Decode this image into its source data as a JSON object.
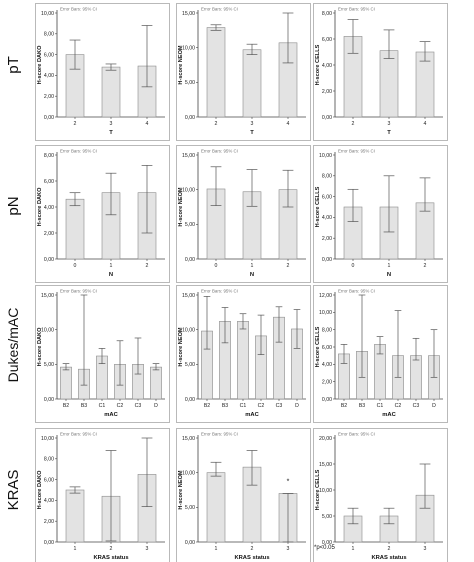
{
  "colors": {
    "bar_fill": "#e3e3e3",
    "bar_stroke": "#8a8a8a",
    "error_bar": "#555555",
    "frame": "#b9b9b9"
  },
  "rows": [
    {
      "label": "pT"
    },
    {
      "label": "pN"
    },
    {
      "label": "Dukes/mAC"
    },
    {
      "label": "KRAS"
    }
  ],
  "footnote": "*p<0.05",
  "chart_data": [
    {
      "type": "bar",
      "row": 0,
      "col": 0,
      "note": "Error Bars: 95% CI",
      "ylabel": "H-score DAKO",
      "xlabel": "T",
      "categories": [
        "2",
        "3",
        "4"
      ],
      "values": [
        6.0,
        4.8,
        4.9
      ],
      "ci_low": [
        4.6,
        4.5,
        2.9
      ],
      "ci_high": [
        7.4,
        5.1,
        8.8
      ],
      "ylim": [
        0,
        10
      ],
      "yticks": [
        "0,00",
        "2,00",
        "4,00",
        "6,00",
        "8,00",
        "10,00"
      ],
      "annotation": ""
    },
    {
      "type": "bar",
      "row": 0,
      "col": 1,
      "note": "Error Bars: 95% CI",
      "ylabel": "H-score NEOM",
      "xlabel": "T",
      "categories": [
        "2",
        "3",
        "4"
      ],
      "values": [
        12.9,
        9.7,
        10.7
      ],
      "ci_low": [
        12.5,
        9.0,
        7.8
      ],
      "ci_high": [
        13.3,
        10.5,
        15.0
      ],
      "ylim": [
        0,
        15
      ],
      "yticks": [
        "0,00",
        "5,00",
        "10,00",
        "15,00"
      ],
      "annotation": ""
    },
    {
      "type": "bar",
      "row": 0,
      "col": 2,
      "note": "Error Bars: 95% CI",
      "ylabel": "H-score CELLS",
      "xlabel": "T",
      "categories": [
        "2",
        "3",
        "4"
      ],
      "values": [
        6.2,
        5.1,
        5.0
      ],
      "ci_low": [
        4.9,
        4.5,
        4.3
      ],
      "ci_high": [
        7.5,
        6.7,
        5.8
      ],
      "ylim": [
        0,
        8
      ],
      "yticks": [
        "0,00",
        "2,00",
        "4,00",
        "6,00",
        "8,00"
      ],
      "annotation": ""
    },
    {
      "type": "bar",
      "row": 1,
      "col": 0,
      "note": "Error Bars: 95% CI",
      "ylabel": "H-score DAKO",
      "xlabel": "N",
      "categories": [
        "0",
        "1",
        "2"
      ],
      "values": [
        4.6,
        5.1,
        5.1
      ],
      "ci_low": [
        4.1,
        3.4,
        2.0
      ],
      "ci_high": [
        5.1,
        6.6,
        7.2
      ],
      "ylim": [
        0,
        8
      ],
      "yticks": [
        "0,00",
        "2,00",
        "4,00",
        "6,00",
        "8,00"
      ],
      "annotation": ""
    },
    {
      "type": "bar",
      "row": 1,
      "col": 1,
      "note": "Error Bars: 95% CI",
      "ylabel": "H-score NEOM",
      "xlabel": "N",
      "categories": [
        "0",
        "1",
        "2"
      ],
      "values": [
        10.1,
        9.7,
        10.0
      ],
      "ci_low": [
        7.7,
        7.6,
        7.5
      ],
      "ci_high": [
        13.3,
        12.9,
        12.8
      ],
      "ylim": [
        0,
        15
      ],
      "yticks": [
        "0,00",
        "5,00",
        "10,00",
        "15,00"
      ],
      "annotation": ""
    },
    {
      "type": "bar",
      "row": 1,
      "col": 2,
      "note": "Error Bars: 95% CI",
      "ylabel": "H-score CELLS",
      "xlabel": "N",
      "categories": [
        "0",
        "1",
        "2"
      ],
      "values": [
        5.0,
        5.0,
        5.4
      ],
      "ci_low": [
        3.6,
        2.6,
        4.6
      ],
      "ci_high": [
        6.7,
        8.0,
        7.8
      ],
      "ylim": [
        0,
        10
      ],
      "yticks": [
        "0,00",
        "2,00",
        "4,00",
        "6,00",
        "8,00",
        "10,00"
      ],
      "annotation": ""
    },
    {
      "type": "bar",
      "row": 2,
      "col": 0,
      "note": "Error Bars: 95% CI",
      "ylabel": "H-score DAKO",
      "xlabel": "mAC",
      "categories": [
        "B2",
        "B3",
        "C1",
        "C2",
        "C3",
        "D"
      ],
      "values": [
        4.6,
        4.3,
        6.2,
        5.0,
        5.0,
        4.6
      ],
      "ci_low": [
        4.2,
        2.0,
        5.1,
        2.0,
        3.6,
        4.2
      ],
      "ci_high": [
        5.1,
        15.2,
        7.3,
        8.4,
        8.8,
        5.1
      ],
      "ylim": [
        0,
        15
      ],
      "yticks": [
        "0,00",
        "5,00",
        "10,00",
        "15,00"
      ],
      "annotation": ""
    },
    {
      "type": "bar",
      "row": 2,
      "col": 1,
      "note": "Error Bars: 95% CI",
      "ylabel": "H-score NEOM",
      "xlabel": "mAC",
      "categories": [
        "B2",
        "B3",
        "C1",
        "C2",
        "C3",
        "D"
      ],
      "values": [
        9.8,
        11.2,
        11.2,
        9.1,
        11.8,
        10.1
      ],
      "ci_low": [
        7.2,
        8.1,
        10.1,
        6.4,
        8.2,
        7.3
      ],
      "ci_high": [
        14.8,
        13.2,
        12.3,
        12.1,
        13.3,
        12.9
      ],
      "ylim": [
        0,
        15
      ],
      "yticks": [
        "0,00",
        "5,00",
        "10,00",
        "15,00"
      ],
      "annotation": ""
    },
    {
      "type": "bar",
      "row": 2,
      "col": 2,
      "note": "Error Bars: 95% CI",
      "ylabel": "H-score CELLS",
      "xlabel": "mAC",
      "categories": [
        "B2",
        "B3",
        "C1",
        "C2",
        "C3",
        "D"
      ],
      "values": [
        5.2,
        5.5,
        6.3,
        5.0,
        5.0,
        5.0
      ],
      "ci_low": [
        4.1,
        2.5,
        5.2,
        2.5,
        4.5,
        2.5
      ],
      "ci_high": [
        6.3,
        12.0,
        7.2,
        10.2,
        7.0,
        8.0
      ],
      "ylim": [
        0,
        12
      ],
      "yticks": [
        "0,00",
        "2,00",
        "4,00",
        "6,00",
        "8,00",
        "10,00",
        "12,00"
      ],
      "annotation": ""
    },
    {
      "type": "bar",
      "row": 3,
      "col": 0,
      "note": "Error Bars: 95% CI",
      "ylabel": "H-score DAKO",
      "xlabel": "KRAS status",
      "categories": [
        "1",
        "2",
        "3"
      ],
      "values": [
        5.0,
        4.4,
        6.5
      ],
      "ci_low": [
        4.7,
        0.1,
        3.4
      ],
      "ci_high": [
        5.3,
        8.8,
        10.0
      ],
      "ylim": [
        0,
        10
      ],
      "yticks": [
        "0,00",
        "2,00",
        "4,00",
        "6,00",
        "8,00",
        "10,00"
      ],
      "annotation": ""
    },
    {
      "type": "bar",
      "row": 3,
      "col": 1,
      "note": "Error Bars: 95% CI",
      "ylabel": "H-score NEOM",
      "xlabel": "KRAS status",
      "categories": [
        "1",
        "2",
        "3"
      ],
      "values": [
        10.0,
        10.8,
        7.0
      ],
      "ci_low": [
        9.5,
        8.2,
        0.0
      ],
      "ci_high": [
        11.5,
        13.2,
        7.0
      ],
      "ylim": [
        0,
        15
      ],
      "yticks": [
        "0,00",
        "5,00",
        "10,00",
        "15,00"
      ],
      "annotation": "*"
    },
    {
      "type": "bar",
      "row": 3,
      "col": 2,
      "note": "Error Bars: 95% CI",
      "ylabel": "H-score CELLS",
      "xlabel": "KRAS status",
      "categories": [
        "1",
        "2",
        "3"
      ],
      "values": [
        5.0,
        5.0,
        9.0
      ],
      "ci_low": [
        3.5,
        3.5,
        6.5
      ],
      "ci_high": [
        6.5,
        6.5,
        15.0
      ],
      "ylim": [
        0,
        20
      ],
      "yticks": [
        "0,00",
        "5,00",
        "10,00",
        "15,00",
        "20,00"
      ],
      "annotation": ""
    }
  ]
}
